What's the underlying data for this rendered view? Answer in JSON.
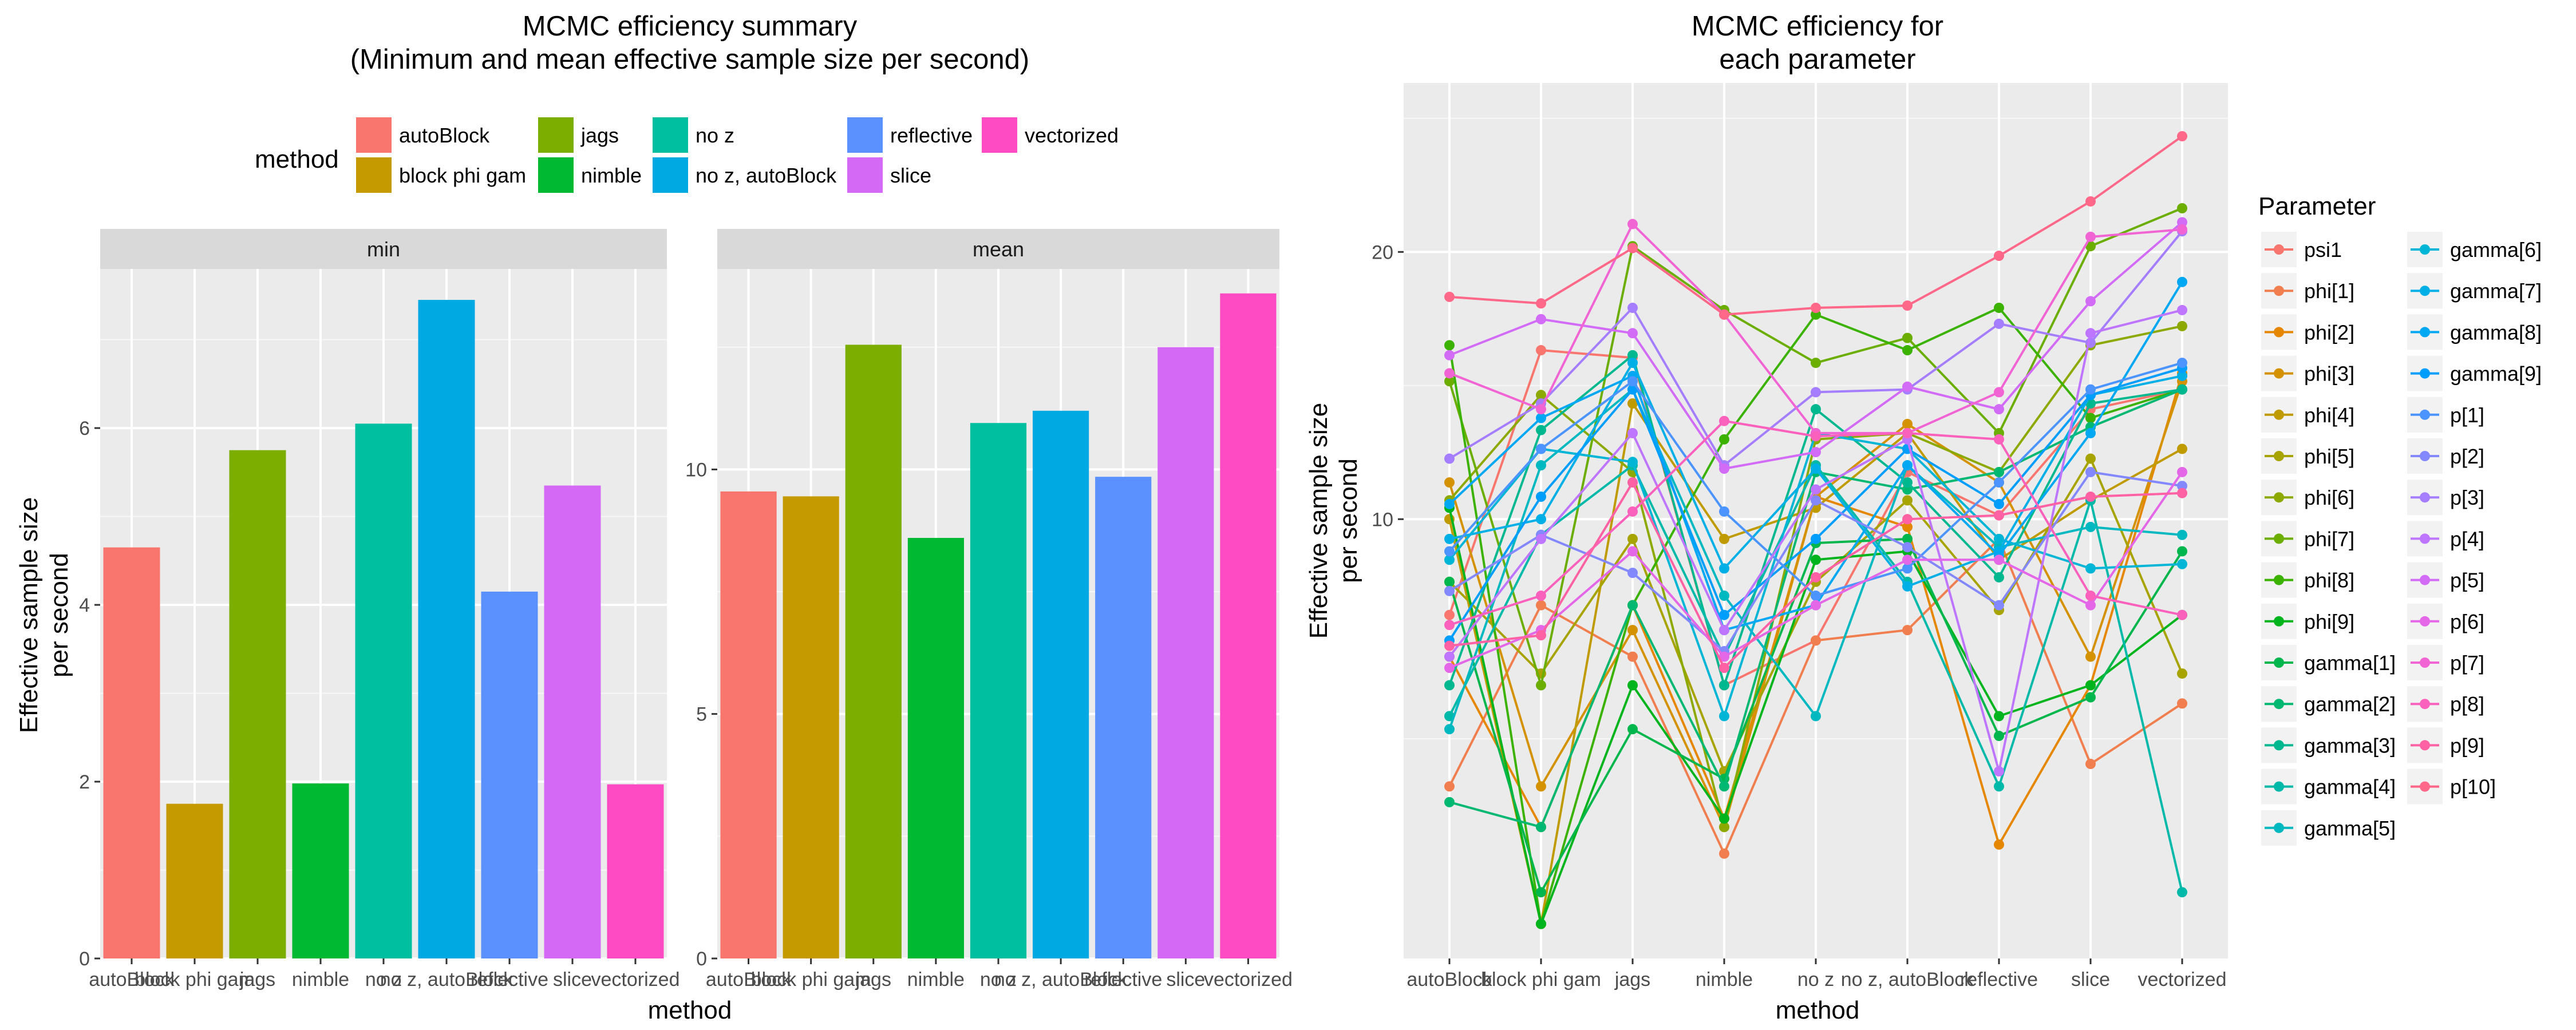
{
  "chart_data": [
    {
      "type": "bar",
      "title": [
        "MCMC efficiency summary",
        "(Minimum and mean effective sample size per second)"
      ],
      "xlabel": "method",
      "ylabel": [
        "Effective sample size",
        "per second"
      ],
      "legend": {
        "title": "method",
        "position": "top"
      },
      "categories": [
        "autoBlock",
        "block phi gam",
        "jags",
        "nimble",
        "no z",
        "no z, autoBlock",
        "reflective",
        "slice",
        "vectorized"
      ],
      "colors": [
        "#F8766D",
        "#C49A00",
        "#7CAE00",
        "#00B932",
        "#00BFA1",
        "#00A9E1",
        "#5B90FF",
        "#D369F5",
        "#FF4BC3"
      ],
      "panels": [
        {
          "strip": "min",
          "ylim": [
            0,
            7.8
          ],
          "yticks": [
            0,
            2,
            4,
            6
          ],
          "values": [
            4.65,
            1.75,
            5.75,
            1.98,
            6.05,
            7.45,
            4.15,
            5.35,
            1.97
          ]
        },
        {
          "strip": "mean",
          "ylim": [
            0,
            14.1
          ],
          "yticks": [
            0,
            5,
            10
          ],
          "values": [
            9.55,
            9.45,
            12.55,
            8.6,
            10.95,
            11.2,
            9.85,
            12.5,
            13.6
          ]
        }
      ],
      "grid": true
    },
    {
      "type": "line",
      "title": [
        "MCMC efficiency for",
        "each parameter"
      ],
      "xlabel": "method",
      "ylabel": [
        "Effective sample size",
        "per second"
      ],
      "y_scale": "log",
      "ylim": [
        3.2,
        31
      ],
      "yticks": [
        10,
        20
      ],
      "grid": true,
      "legend": {
        "title": "Parameter",
        "position": "right"
      },
      "categories": [
        "autoBlock",
        "block phi gam",
        "jags",
        "nimble",
        "no z",
        "no z, autoBlock",
        "reflective",
        "slice",
        "vectorized"
      ],
      "series": [
        {
          "name": "psi1",
          "color": "#F8766D",
          "values": [
            7.8,
            15.5,
            15.2,
            6.5,
            7.3,
            11.3,
            10.1,
            13.3,
            14.0
          ]
        },
        {
          "name": "phi[1]",
          "color": "#F07E4E",
          "values": [
            5.0,
            8.0,
            7.0,
            4.2,
            7.3,
            7.5,
            9.5,
            5.3,
            6.2
          ]
        },
        {
          "name": "phi[2]",
          "color": "#E58700",
          "values": [
            7.0,
            4.5,
            8.0,
            4.6,
            10.6,
            9.8,
            4.3,
            6.5,
            14.6
          ]
        },
        {
          "name": "phi[3]",
          "color": "#D49200",
          "values": [
            11.0,
            5.0,
            7.5,
            4.5,
            10.6,
            12.8,
            11.0,
            7.0,
            14.3
          ]
        },
        {
          "name": "phi[4]",
          "color": "#BF9B00",
          "values": [
            10.0,
            3.5,
            13.5,
            9.5,
            10.3,
            12.5,
            9.0,
            10.5,
            12.0
          ]
        },
        {
          "name": "phi[5]",
          "color": "#A7A300",
          "values": [
            8.5,
            6.7,
            9.5,
            5.2,
            8.5,
            10.5,
            7.9,
            11.7,
            6.7
          ]
        },
        {
          "name": "phi[6]",
          "color": "#8CA900",
          "values": [
            10.5,
            13.8,
            11.3,
            4.5,
            12.3,
            12.5,
            11.3,
            15.7,
            16.5
          ]
        },
        {
          "name": "phi[7]",
          "color": "#6BAE00",
          "values": [
            14.3,
            6.5,
            20.3,
            17.2,
            15.0,
            16.0,
            12.5,
            20.3,
            22.4
          ]
        },
        {
          "name": "phi[8]",
          "color": "#3CB200",
          "values": [
            15.7,
            3.5,
            8.0,
            12.3,
            17.0,
            15.5,
            17.3,
            13.0,
            14.0
          ]
        },
        {
          "name": "phi[9]",
          "color": "#00B41E",
          "values": [
            10.3,
            3.5,
            6.5,
            4.6,
            9.0,
            9.2,
            6.0,
            6.5,
            7.8
          ]
        },
        {
          "name": "gamma[1]",
          "color": "#00B64D",
          "values": [
            8.5,
            3.8,
            5.8,
            5.1,
            9.4,
            9.5,
            5.7,
            6.3,
            9.2
          ]
        },
        {
          "name": "gamma[2]",
          "color": "#00B872",
          "values": [
            4.8,
            4.5,
            8.0,
            5.0,
            11.3,
            10.8,
            11.3,
            12.7,
            14.0
          ]
        },
        {
          "name": "gamma[3]",
          "color": "#00B890",
          "values": [
            6.5,
            12.6,
            15.3,
            6.5,
            13.3,
            11.0,
            8.6,
            13.5,
            14.0
          ]
        },
        {
          "name": "gamma[4]",
          "color": "#00B9A9",
          "values": [
            6.0,
            9.6,
            11.5,
            7.0,
            11.5,
            8.5,
            5.0,
            10.5,
            3.8
          ]
        },
        {
          "name": "gamma[5]",
          "color": "#00B8C0",
          "values": [
            5.8,
            11.5,
            14.0,
            8.2,
            6.0,
            11.5,
            9.3,
            9.8,
            9.6
          ]
        },
        {
          "name": "gamma[6]",
          "color": "#00B5D5",
          "values": [
            9.0,
            12.0,
            11.6,
            6.0,
            12.5,
            12.0,
            9.5,
            8.8,
            8.9
          ]
        },
        {
          "name": "gamma[7]",
          "color": "#00AFE6",
          "values": [
            9.5,
            10.0,
            15.0,
            8.8,
            11.4,
            8.4,
            9.2,
            13.8,
            14.5
          ]
        },
        {
          "name": "gamma[8]",
          "color": "#00A8F3",
          "values": [
            10.4,
            13.0,
            14.5,
            7.5,
            8.0,
            11.5,
            9.1,
            12.5,
            18.5
          ]
        },
        {
          "name": "gamma[9]",
          "color": "#009EFC",
          "values": [
            7.3,
            10.6,
            14.0,
            7.8,
            9.5,
            12.0,
            10.4,
            13.8,
            14.8
          ]
        },
        {
          "name": "p[1]",
          "color": "#4C94FF",
          "values": [
            9.2,
            12.0,
            14.3,
            10.2,
            8.2,
            8.8,
            11.0,
            14.0,
            15.0
          ]
        },
        {
          "name": "p[2]",
          "color": "#8388FF",
          "values": [
            8.3,
            9.6,
            8.7,
            7.1,
            10.5,
            9.3,
            8.0,
            11.3,
            10.9
          ]
        },
        {
          "name": "p[3]",
          "color": "#A57EFF",
          "values": [
            11.7,
            13.5,
            17.3,
            11.5,
            13.9,
            14.0,
            16.6,
            15.8,
            21.1
          ]
        },
        {
          "name": "p[4]",
          "color": "#BE75FF",
          "values": [
            7.0,
            9.5,
            12.5,
            7.5,
            10.8,
            12.3,
            5.2,
            16.2,
            17.2
          ]
        },
        {
          "name": "p[5]",
          "color": "#D26CF6",
          "values": [
            15.3,
            16.8,
            16.2,
            11.4,
            11.9,
            14.1,
            13.3,
            17.6,
            21.6
          ]
        },
        {
          "name": "p[6]",
          "color": "#E367E6",
          "values": [
            6.8,
            7.5,
            9.2,
            7.0,
            8.0,
            9.0,
            9.0,
            8.0,
            11.3
          ]
        },
        {
          "name": "p[7]",
          "color": "#F164D3",
          "values": [
            14.6,
            13.3,
            21.5,
            17.0,
            12.5,
            12.5,
            13.9,
            20.8,
            21.2
          ]
        },
        {
          "name": "p[8]",
          "color": "#FA61BD",
          "values": [
            7.6,
            8.2,
            10.2,
            12.9,
            12.4,
            12.5,
            12.3,
            8.2,
            7.8
          ]
        },
        {
          "name": "p[9]",
          "color": "#FF62A4",
          "values": [
            7.2,
            7.4,
            11.0,
            6.8,
            8.6,
            10.0,
            10.1,
            10.6,
            10.7
          ]
        },
        {
          "name": "p[10]",
          "color": "#FF6888",
          "values": [
            17.8,
            17.5,
            20.2,
            17.0,
            17.3,
            17.4,
            19.8,
            22.8,
            27.0
          ]
        }
      ]
    }
  ]
}
